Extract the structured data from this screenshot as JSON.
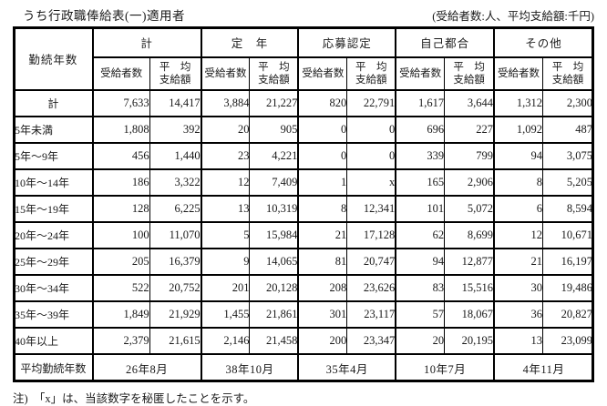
{
  "page": {
    "title": "うち行政職俸給表(一)適用者",
    "unit_note": "(受給者数:人、平均支給額:千円)",
    "footnote": "注)　「x」は、当該数字を秘匿したことを示す。"
  },
  "table": {
    "corner_header": "勤続年数",
    "groups": [
      "計",
      "定　年",
      "応募認定",
      "自己都合",
      "その他"
    ],
    "sub_recipients": "受給者数",
    "sub_avg_line1": "平　均",
    "sub_avg_line2": "支給額",
    "rows": [
      {
        "label": "計",
        "values": [
          "7,633",
          "14,417",
          "3,884",
          "21,227",
          "820",
          "22,791",
          "1,617",
          "3,644",
          "1,312",
          "2,300"
        ]
      },
      {
        "label": "5年未満",
        "values": [
          "1,808",
          "392",
          "20",
          "905",
          "0",
          "0",
          "696",
          "227",
          "1,092",
          "487"
        ]
      },
      {
        "label": "5年〜9年",
        "values": [
          "456",
          "1,440",
          "23",
          "4,221",
          "0",
          "0",
          "339",
          "799",
          "94",
          "3,075"
        ]
      },
      {
        "label": "10年〜14年",
        "values": [
          "186",
          "3,322",
          "12",
          "7,409",
          "1",
          "x",
          "165",
          "2,906",
          "8",
          "5,205"
        ]
      },
      {
        "label": "15年〜19年",
        "values": [
          "128",
          "6,225",
          "13",
          "10,319",
          "8",
          "12,341",
          "101",
          "5,072",
          "6",
          "8,594"
        ]
      },
      {
        "label": "20年〜24年",
        "values": [
          "100",
          "11,070",
          "5",
          "15,984",
          "21",
          "17,128",
          "62",
          "8,699",
          "12",
          "10,671"
        ]
      },
      {
        "label": "25年〜29年",
        "values": [
          "205",
          "16,379",
          "9",
          "14,065",
          "81",
          "20,747",
          "94",
          "12,877",
          "21",
          "16,197"
        ]
      },
      {
        "label": "30年〜34年",
        "values": [
          "522",
          "20,752",
          "201",
          "20,128",
          "208",
          "23,626",
          "83",
          "15,516",
          "30",
          "19,486"
        ]
      },
      {
        "label": "35年〜39年",
        "values": [
          "1,849",
          "21,929",
          "1,455",
          "21,861",
          "301",
          "23,117",
          "57",
          "18,067",
          "36",
          "20,827"
        ]
      },
      {
        "label": "40年以上",
        "values": [
          "2,379",
          "21,615",
          "2,146",
          "21,458",
          "200",
          "23,347",
          "20",
          "20,195",
          "13",
          "23,099"
        ]
      }
    ],
    "average_row": {
      "label": "平均勤続年数",
      "values": [
        "26年8月",
        "38年10月",
        "35年4月",
        "10年7月",
        "4年11月"
      ]
    }
  }
}
